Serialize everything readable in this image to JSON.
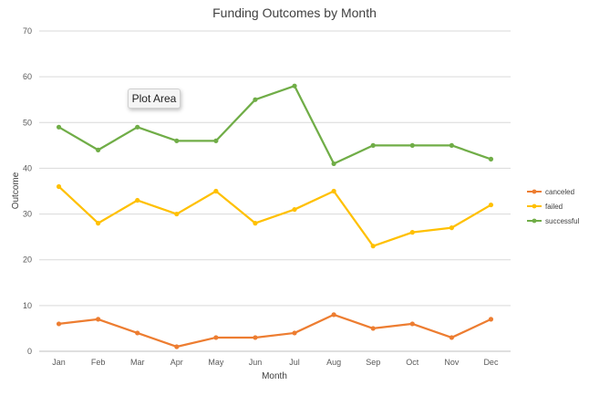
{
  "chart_data": {
    "type": "line",
    "title": "Funding Outcomes by Month",
    "xlabel": "Month",
    "ylabel": "Outcome",
    "ylim": [
      0,
      70
    ],
    "yticks": [
      0,
      10,
      20,
      30,
      40,
      50,
      60,
      70
    ],
    "grid": true,
    "legend_position": "right",
    "categories": [
      "Jan",
      "Feb",
      "Mar",
      "Apr",
      "May",
      "Jun",
      "Jul",
      "Aug",
      "Sep",
      "Oct",
      "Nov",
      "Dec"
    ],
    "series": [
      {
        "name": "canceled",
        "color": "#ed7d31",
        "values": [
          6,
          7,
          4,
          1,
          3,
          3,
          4,
          8,
          5,
          6,
          3,
          7
        ]
      },
      {
        "name": "failed",
        "color": "#ffc000",
        "values": [
          36,
          28,
          33,
          30,
          35,
          28,
          31,
          35,
          23,
          26,
          27,
          32
        ]
      },
      {
        "name": "successful",
        "color": "#70ad47",
        "values": [
          49,
          44,
          49,
          46,
          46,
          55,
          58,
          41,
          45,
          45,
          45,
          42
        ]
      }
    ]
  },
  "tooltip": {
    "label": "Plot Area"
  }
}
